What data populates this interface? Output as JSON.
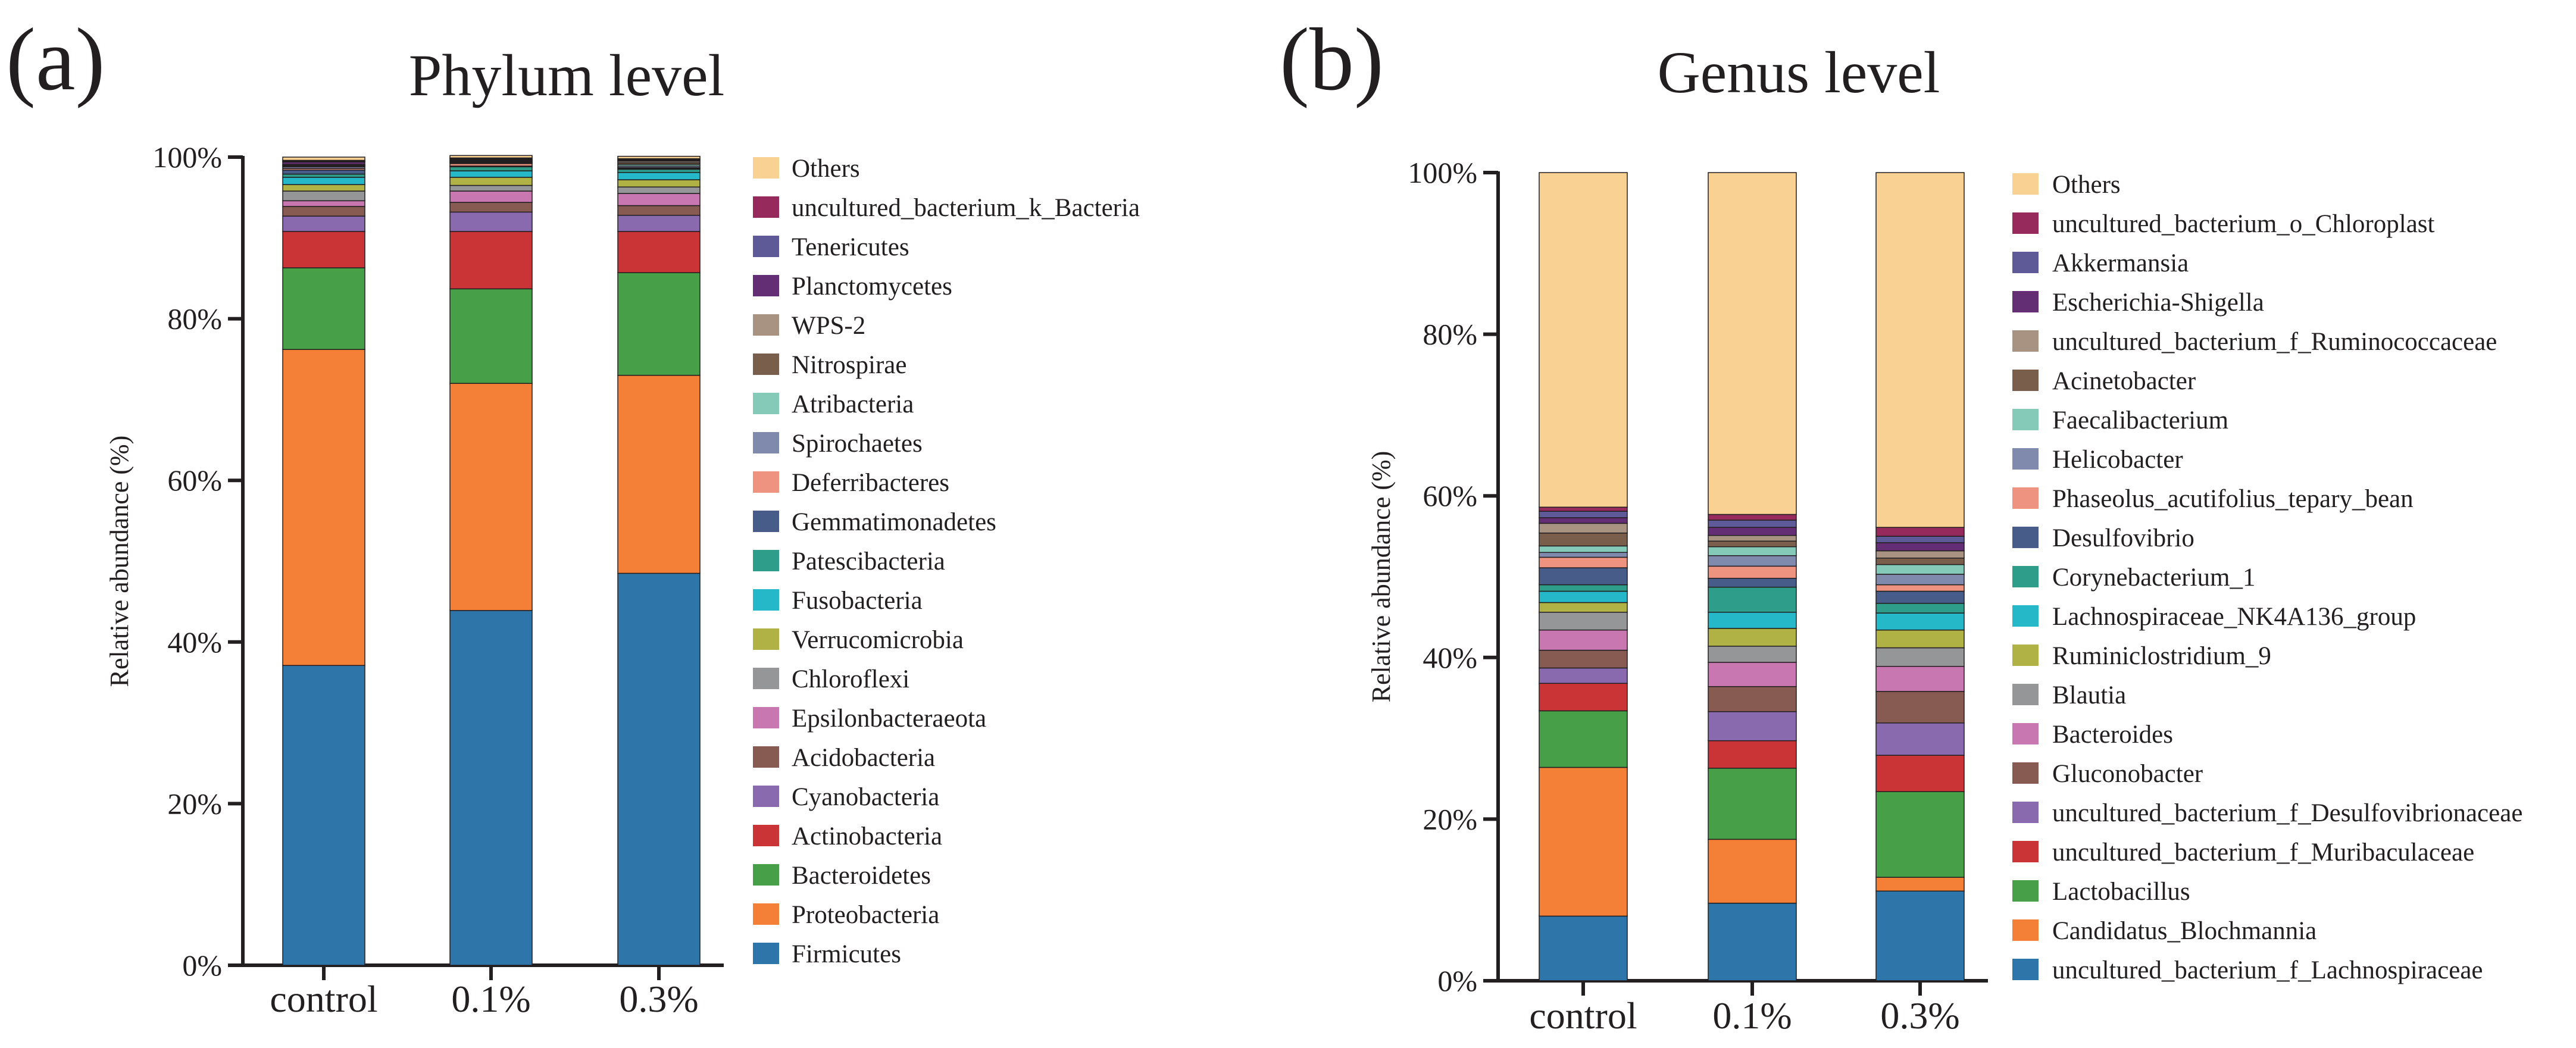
{
  "chart_data": [
    {
      "type": "bar",
      "stacked": true,
      "panel_label": "(a)",
      "title": "Phylum level",
      "ylabel": "Relative abundance (%)",
      "xlabel": "",
      "ylim": [
        0,
        100
      ],
      "yticks": [
        "0%",
        "20%",
        "40%",
        "60%",
        "80%",
        "100%"
      ],
      "categories": [
        "control",
        "0.1%",
        "0.3%"
      ],
      "legend_position": "right",
      "series": [
        {
          "name": "Firmicutes",
          "color": "#2e75a9",
          "values": [
            37.1,
            43.9,
            48.5
          ]
        },
        {
          "name": "Proteobacteria",
          "color": "#f47f36",
          "values": [
            39.1,
            28.1,
            24.5
          ]
        },
        {
          "name": "Bacteroidetes",
          "color": "#479f47",
          "values": [
            10.1,
            11.7,
            12.7
          ]
        },
        {
          "name": "Actinobacteria",
          "color": "#cb3437",
          "values": [
            4.5,
            7.1,
            5.1
          ]
        },
        {
          "name": "Cyanobacteria",
          "color": "#896aae",
          "values": [
            1.9,
            2.4,
            2.0
          ]
        },
        {
          "name": "Acidobacteria",
          "color": "#875a52",
          "values": [
            1.2,
            1.2,
            1.2
          ]
        },
        {
          "name": "Epsilonbacteraeota",
          "color": "#c877b1",
          "values": [
            0.7,
            1.4,
            1.5
          ]
        },
        {
          "name": "Chloroflexi",
          "color": "#959698",
          "values": [
            1.2,
            0.7,
            0.8
          ]
        },
        {
          "name": "Verrucomicrobia",
          "color": "#b0b245",
          "values": [
            0.8,
            1.0,
            0.9
          ]
        },
        {
          "name": "Fusobacteria",
          "color": "#24b8c8",
          "values": [
            0.9,
            0.8,
            0.9
          ]
        },
        {
          "name": "Patescibacteria",
          "color": "#2e9e8a",
          "values": [
            0.4,
            0.5,
            0.4
          ]
        },
        {
          "name": "Gemmatimonadetes",
          "color": "#475c89",
          "values": [
            0.5,
            0.1,
            0.1
          ]
        },
        {
          "name": "Deferribacteres",
          "color": "#ed9380",
          "values": [
            0.2,
            0.3,
            0.1
          ]
        },
        {
          "name": "Spirochaetes",
          "color": "#7f8aad",
          "values": [
            0.2,
            0.1,
            0.2
          ]
        },
        {
          "name": "Atribacteria",
          "color": "#85c9b9",
          "values": [
            0.1,
            0.1,
            0.2
          ]
        },
        {
          "name": "Nitrospirae",
          "color": "#7a5e4c",
          "values": [
            0.1,
            0.1,
            0.2
          ]
        },
        {
          "name": "WPS-2",
          "color": "#a89383",
          "values": [
            0.1,
            0.1,
            0.2
          ]
        },
        {
          "name": "Planctomycetes",
          "color": "#632e74",
          "values": [
            0.3,
            0.1,
            0.1
          ]
        },
        {
          "name": "Tenericutes",
          "color": "#5e5a98",
          "values": [
            0.1,
            0.1,
            0.1
          ]
        },
        {
          "name": "uncultured_bacterium_k_Bacteria",
          "color": "#962a5d",
          "values": [
            0.1,
            0.1,
            0.1
          ]
        },
        {
          "name": "Others",
          "color": "#f9d193",
          "values": [
            0.4,
            0.3,
            0.3
          ]
        }
      ]
    },
    {
      "type": "bar",
      "stacked": true,
      "panel_label": "(b)",
      "title": "Genus level",
      "ylabel": "Relative abundance (%)",
      "xlabel": "",
      "ylim": [
        0,
        100
      ],
      "yticks": [
        "0%",
        "20%",
        "40%",
        "60%",
        "80%",
        "100%"
      ],
      "categories": [
        "control",
        "0.1%",
        "0.3%"
      ],
      "legend_position": "right",
      "series": [
        {
          "name": "uncultured_bacterium_f_Lachnospiraceae",
          "color": "#2e75a9",
          "values": [
            8.0,
            9.6,
            11.1
          ]
        },
        {
          "name": "Candidatus_Blochmannia",
          "color": "#f47f36",
          "values": [
            18.4,
            7.9,
            1.7
          ]
        },
        {
          "name": "Lactobacillus",
          "color": "#479f47",
          "values": [
            7.0,
            8.8,
            10.6
          ]
        },
        {
          "name": "uncultured_bacterium_f_Muribaculaceae",
          "color": "#cb3437",
          "values": [
            3.4,
            3.4,
            4.5
          ]
        },
        {
          "name": "uncultured_bacterium_f_Desulfovibrionaceae",
          "color": "#896aae",
          "values": [
            1.9,
            3.6,
            4.0
          ]
        },
        {
          "name": "Gluconobacter",
          "color": "#875a52",
          "values": [
            2.2,
            3.1,
            3.9
          ]
        },
        {
          "name": "Bacteroides",
          "color": "#c877b1",
          "values": [
            2.5,
            3.0,
            3.1
          ]
        },
        {
          "name": "Blautia",
          "color": "#959698",
          "values": [
            2.2,
            2.0,
            2.3
          ]
        },
        {
          "name": "Ruminiclostridium_9",
          "color": "#b0b245",
          "values": [
            1.2,
            2.2,
            2.2
          ]
        },
        {
          "name": "Lachnospiraceae_NK4A136_group",
          "color": "#24b8c8",
          "values": [
            1.4,
            2.0,
            2.1
          ]
        },
        {
          "name": "Corynebacterium_1",
          "color": "#2e9e8a",
          "values": [
            0.8,
            3.1,
            1.2
          ]
        },
        {
          "name": "Desulfovibrio",
          "color": "#475c89",
          "values": [
            2.1,
            1.1,
            1.5
          ]
        },
        {
          "name": "Phaseolus_acutifolius_tepary_bean",
          "color": "#ed9380",
          "values": [
            1.3,
            1.5,
            0.8
          ]
        },
        {
          "name": "Helicobacter",
          "color": "#7f8aad",
          "values": [
            0.6,
            1.3,
            1.3
          ]
        },
        {
          "name": "Faecalibacterium",
          "color": "#85c9b9",
          "values": [
            0.8,
            1.1,
            1.2
          ]
        },
        {
          "name": "Acinetobacter",
          "color": "#7a5e4c",
          "values": [
            1.6,
            0.7,
            0.8
          ]
        },
        {
          "name": "uncultured_bacterium_f_Ruminococcaceae",
          "color": "#a89383",
          "values": [
            1.2,
            0.7,
            0.9
          ]
        },
        {
          "name": "Escherichia-Shigella",
          "color": "#632e74",
          "values": [
            0.7,
            1.0,
            1.0
          ]
        },
        {
          "name": "Akkermansia",
          "color": "#5e5a98",
          "values": [
            0.8,
            0.9,
            0.8
          ]
        },
        {
          "name": "uncultured_bacterium_o_Chloroplast",
          "color": "#962a5d",
          "values": [
            0.5,
            0.7,
            1.1
          ]
        },
        {
          "name": "Others",
          "color": "#f9d193",
          "values": [
            41.4,
            42.3,
            43.9
          ]
        }
      ]
    }
  ]
}
